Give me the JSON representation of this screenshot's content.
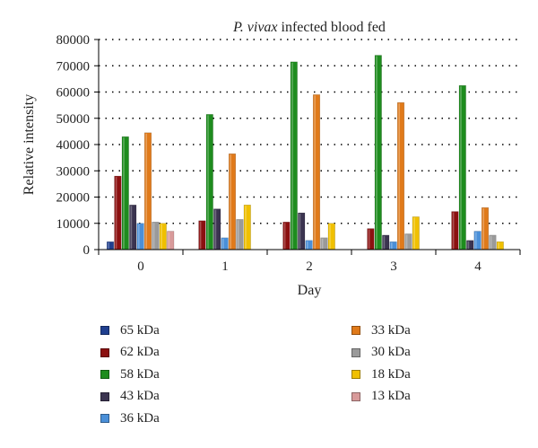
{
  "chart_data": {
    "type": "bar",
    "title_italic": "P. vivax",
    "title_rest": " infected blood fed",
    "xlabel": "Day",
    "ylabel": "Relative intensity",
    "categories": [
      "0",
      "1",
      "2",
      "3",
      "4"
    ],
    "ylim": [
      0,
      80000
    ],
    "yticks": [
      "0",
      "10000",
      "20000",
      "30000",
      "40000",
      "50000",
      "60000",
      "70000",
      "80000"
    ],
    "grid": true,
    "legend_position": "bottom",
    "series": [
      {
        "name": "65 kDa",
        "color": "#1f3f8f",
        "values": [
          3000,
          0,
          0,
          0,
          0
        ]
      },
      {
        "name": "62 kDa",
        "color": "#8b1010",
        "values": [
          28000,
          11000,
          10500,
          8000,
          14500
        ]
      },
      {
        "name": "58 kDa",
        "color": "#1e8c1e",
        "values": [
          43000,
          51500,
          71500,
          74000,
          62500
        ]
      },
      {
        "name": "43 kDa",
        "color": "#3b3450",
        "values": [
          17000,
          15500,
          14000,
          5500,
          3500
        ]
      },
      {
        "name": "36 kDa",
        "color": "#4a8fd8",
        "values": [
          10000,
          4500,
          3500,
          3000,
          7000
        ]
      },
      {
        "name": "33 kDa",
        "color": "#e07a1a",
        "values": [
          44500,
          36500,
          59000,
          56000,
          16000
        ]
      },
      {
        "name": "30 kDa",
        "color": "#9a9a9a",
        "values": [
          10500,
          11500,
          4500,
          6000,
          5500
        ]
      },
      {
        "name": "18 kDa",
        "color": "#f0c000",
        "values": [
          10000,
          17000,
          10000,
          12500,
          3000
        ]
      },
      {
        "name": "13 kDa",
        "color": "#d89a9a",
        "values": [
          7000,
          0,
          0,
          0,
          0
        ]
      }
    ]
  }
}
